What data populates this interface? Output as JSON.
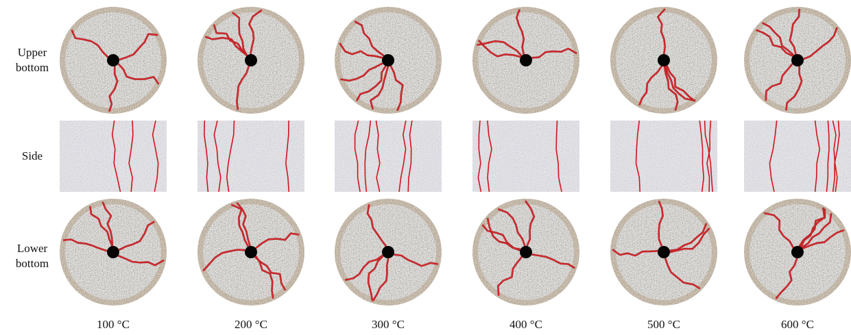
{
  "row_labels": [
    "Upper bottom",
    "Side",
    "Lower bottom"
  ],
  "column_labels": [
    "100 °C",
    "200 °C",
    "300 °C",
    "400 °C",
    "500 °C",
    "600 °C"
  ]
}
